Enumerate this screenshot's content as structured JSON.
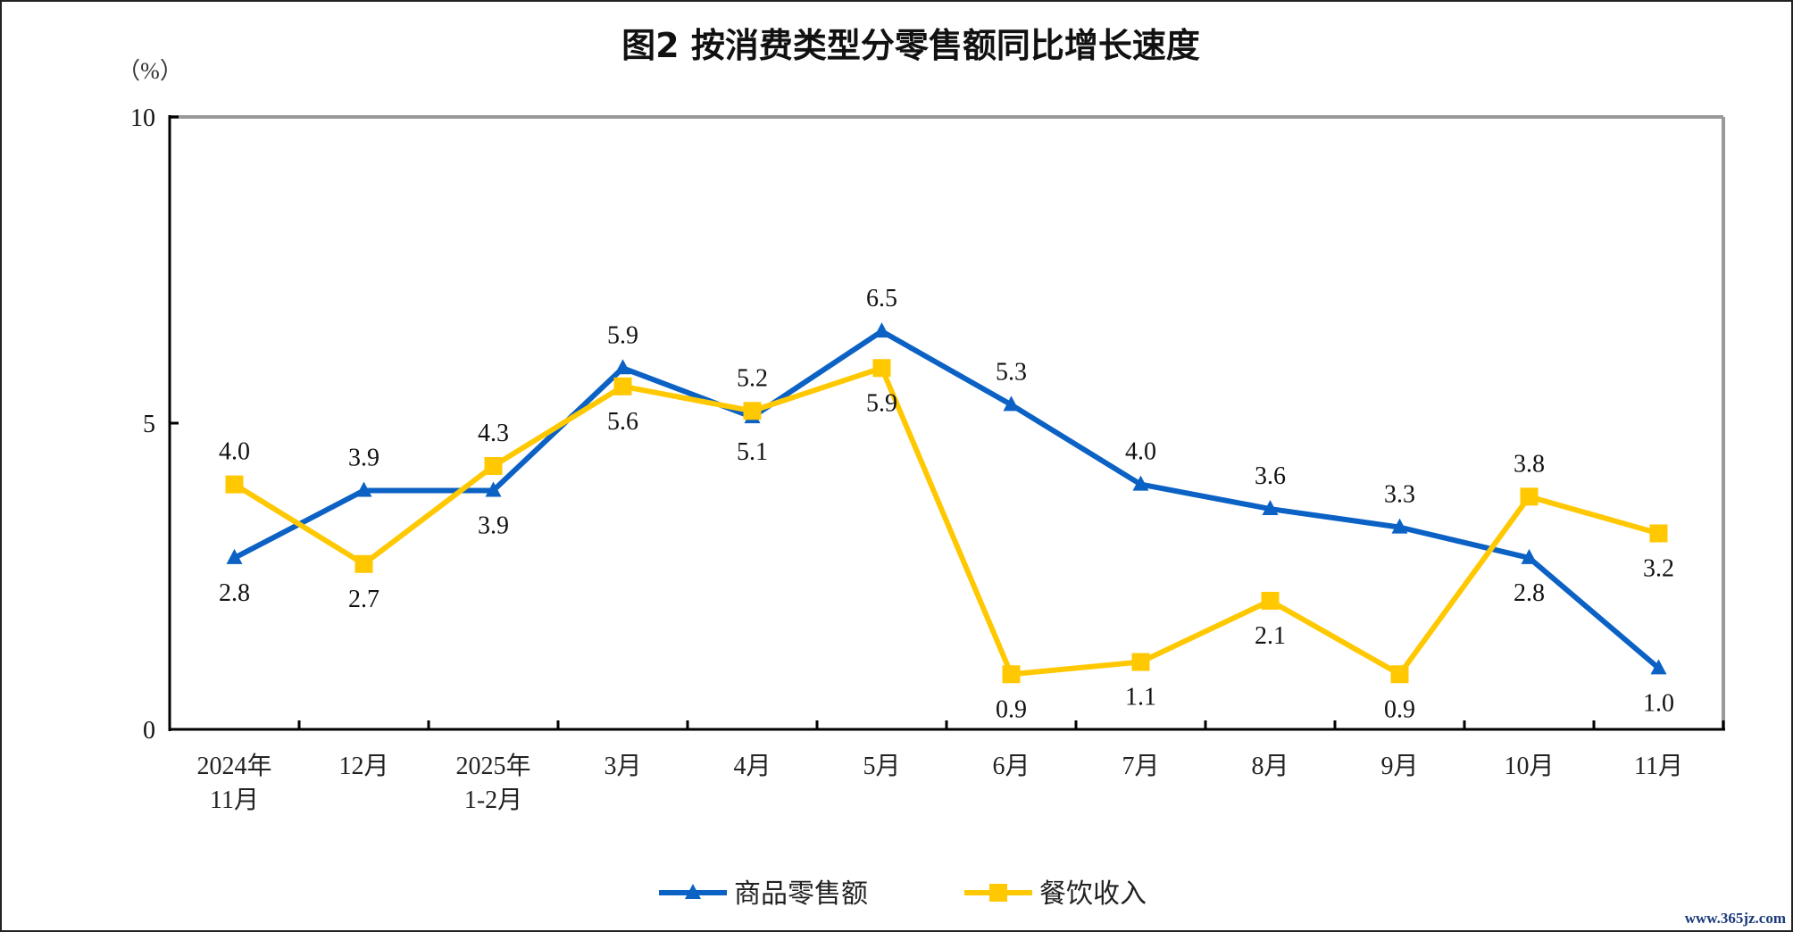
{
  "chart_data": {
    "type": "line",
    "title": "图2  按消费类型分零售额同比增长速度",
    "ylabel": "（%）",
    "xlabel": "",
    "ylim": [
      0,
      10
    ],
    "yticks": [
      "0",
      "5",
      "10"
    ],
    "categories": [
      [
        "2024年",
        "11月"
      ],
      [
        "12月"
      ],
      [
        "2025年",
        "1-2月"
      ],
      [
        "3月"
      ],
      [
        "4月"
      ],
      [
        "5月"
      ],
      [
        "6月"
      ],
      [
        "7月"
      ],
      [
        "8月"
      ],
      [
        "9月"
      ],
      [
        "10月"
      ],
      [
        "11月"
      ]
    ],
    "series": [
      {
        "name": "商品零售额",
        "color": "#0b62c4",
        "marker": "triangle",
        "values": [
          2.8,
          3.9,
          3.9,
          5.9,
          5.1,
          6.5,
          5.3,
          4.0,
          3.6,
          3.3,
          2.8,
          1.0
        ]
      },
      {
        "name": "餐饮收入",
        "color": "#ffc800",
        "marker": "square",
        "values": [
          4.0,
          2.7,
          4.3,
          5.6,
          5.2,
          5.9,
          0.9,
          1.1,
          2.1,
          0.9,
          3.8,
          3.2
        ]
      }
    ],
    "legend": "bottom-center",
    "grid": false
  },
  "watermark": "www.365jz.com"
}
